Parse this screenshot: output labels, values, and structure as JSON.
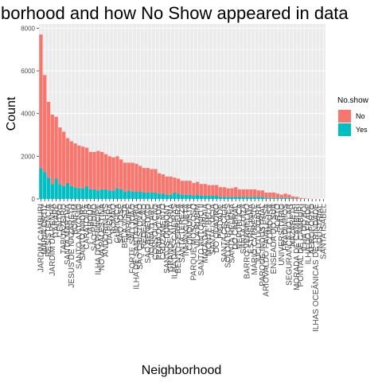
{
  "chart_data": {
    "type": "bar",
    "stacked": true,
    "title": "borhood and how  No Show appeared in data",
    "xlabel": "Neighborhood",
    "ylabel": "Count",
    "ylim": [
      0,
      8200
    ],
    "yticks": [
      0,
      2000,
      4000,
      6000,
      8000
    ],
    "yticklabels": [
      "0",
      "2000",
      "4000",
      "6000",
      "8000"
    ],
    "grid": true,
    "legend": {
      "title": "No.show",
      "position": "right",
      "entries": [
        {
          "label": "No",
          "color": "#F8766D"
        },
        {
          "label": "Yes",
          "color": "#00BFC4"
        }
      ]
    },
    "categories": [
      "JARDIM CAMBURI",
      "MARIA ORTIZ",
      "RESISTÊNCIA",
      "JARDIM DA PENHA",
      "ITARARÉ",
      "CENTRO",
      "TABUAZEIRO",
      "SANTA MARTHA",
      "JESUS DE NAZARETH",
      "BONFIM",
      "SANTO ANTÔNIO",
      "SANTO ANDRÉ",
      "CARATOÍRA",
      "JABOUR",
      "SÃO PEDRO",
      "ILHA DO PRÍNCIPE",
      "NOVA PALESTINA",
      "ANDORINHAS",
      "DA PENHA",
      "ROMÃO",
      "GURIGICA",
      "SÃO JOSÉ",
      "BELA VISTA",
      "MARUÍPE",
      "FORTE SÃO JOÃO",
      "ILHA DE SANTA MARIA",
      "SÃO CRISTÓVÃO",
      "REDENÇÃO",
      "SÃO BENEDITO",
      "JOANA D´ARC",
      "CONSOLAÇÃO",
      "PRAIA DO SUÁ",
      "CRUZAMENTO",
      "SANTOS DUMONT",
      "GRANDE VITÓRIA",
      "ILHA DAS CAIEIRAS",
      "BENTO FERREIRA",
      "SANTA TEREZA",
      "INHANGUETÁ",
      "CONQUISTA",
      "PARQUE MOSCOSO",
      "VILA RUBIM",
      "SANTO ANTÔNIO II",
      "MATA DA PRAIA",
      "MONTE BELO",
      "SANTA LÚCIA",
      "DO QUADRO",
      "PIEDADE",
      "SANTA CECÍLIA",
      "SOLON BORGES",
      "SANTA HELENA",
      "DO CABRAL",
      "REPÚBLICA",
      "SANTA LUÍZA",
      "BARRO VERMELHO",
      "ESTRELINHA",
      "MÁRIO CYPRESTE",
      "JUCUTUQUARA",
      "PARQUE INDUSTRIAL",
      "ARIOVALDO FAVALESSA",
      "COMDUSA",
      "ENSEADA DO SUÁ",
      "HORTO",
      "UNIVERSITÁRIO",
      "FRADINHOS",
      "SEGURANÇA DO LAR",
      "NAZARETH",
      "MORADA DE CAMBURI",
      "PONTAL DE CAMBURI",
      "ILHA DO BOI",
      "ILHA DO FRADE",
      "AEROPORTO",
      "ILHAS OCEÂNICAS DE TRINDADE",
      "INDUSTRIAL",
      "SANTA ISABEL"
    ],
    "series": [
      {
        "name": "No",
        "values": [
          6250,
          4550,
          3550,
          3250,
          2900,
          2650,
          2550,
          2100,
          2100,
          2050,
          2000,
          1950,
          1800,
          1750,
          1750,
          1850,
          1750,
          1650,
          1600,
          1550,
          1500,
          1400,
          1350,
          1300,
          1350,
          1300,
          1200,
          1150,
          1150,
          1100,
          1100,
          950,
          900,
          850,
          850,
          700,
          700,
          650,
          650,
          650,
          600,
          600,
          550,
          550,
          500,
          500,
          500,
          450,
          450,
          400,
          400,
          450,
          350,
          350,
          350,
          350,
          350,
          300,
          300,
          250,
          250,
          250,
          200,
          150,
          200,
          150,
          100,
          80,
          40,
          25,
          10,
          5,
          2,
          1,
          0
        ]
      },
      {
        "name": "Yes",
        "values": [
          1450,
          1250,
          1000,
          700,
          950,
          700,
          600,
          750,
          600,
          550,
          500,
          500,
          600,
          450,
          450,
          400,
          450,
          450,
          400,
          400,
          500,
          450,
          350,
          400,
          350,
          350,
          350,
          300,
          300,
          300,
          300,
          250,
          250,
          200,
          200,
          300,
          250,
          200,
          200,
          200,
          150,
          200,
          150,
          150,
          150,
          150,
          150,
          100,
          100,
          100,
          100,
          100,
          100,
          100,
          100,
          100,
          100,
          100,
          100,
          50,
          50,
          50,
          50,
          50,
          50,
          50,
          20,
          20,
          10,
          5,
          3,
          1,
          1,
          0,
          0
        ]
      }
    ]
  }
}
